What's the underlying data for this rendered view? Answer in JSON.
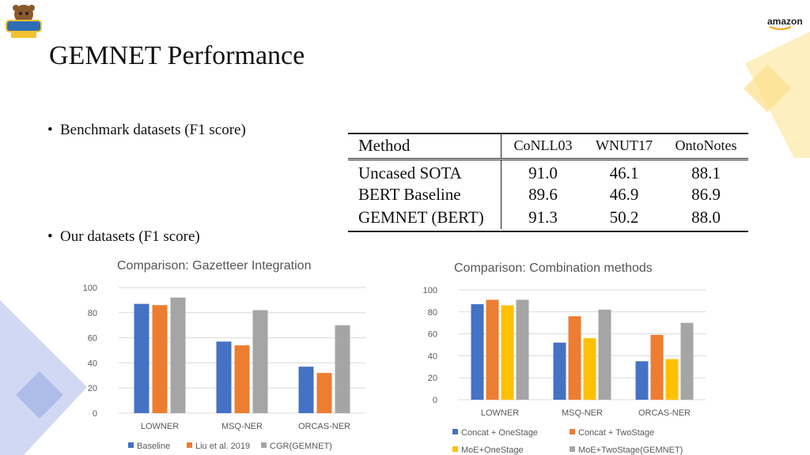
{
  "slide": {
    "title": "GEMNET Performance",
    "bullets": [
      "Benchmark datasets (F1 score)",
      "Our datasets (F1 score)"
    ]
  },
  "logos": {
    "left": "UCLA NLP logo",
    "right": "amazon"
  },
  "results_table": {
    "columns": [
      "Method",
      "CoNLL03",
      "WNUT17",
      "OntoNotes"
    ],
    "rows": [
      {
        "method": "Uncased SOTA",
        "conll03": "91.0",
        "wnut17": "46.1",
        "ontonotes": "88.1"
      },
      {
        "method": "BERT Baseline",
        "conll03": "89.6",
        "wnut17": "46.9",
        "ontonotes": "86.9"
      },
      {
        "method": "GEMNET (BERT)",
        "conll03": "91.3",
        "wnut17": "50.2",
        "ontonotes": "88.0"
      }
    ]
  },
  "colors": {
    "blue": "#4472C4",
    "orange": "#ED7D31",
    "gray": "#A5A5A5",
    "yellow": "#FFC000",
    "deco_blue": "#BCC8EE",
    "deco_yellow": "#FDEBB0"
  },
  "chart_data": [
    {
      "type": "bar",
      "title": "Comparison: Gazetteer Integration",
      "categories": [
        "LOWNER",
        "MSQ-NER",
        "ORCAS-NER"
      ],
      "yticks": [
        0,
        20,
        40,
        60,
        80,
        100
      ],
      "ylim": [
        0,
        100
      ],
      "grid": true,
      "legend_position": "bottom",
      "series": [
        {
          "name": "Baseline",
          "color": "#4472C4",
          "values": [
            87,
            57,
            37
          ]
        },
        {
          "name": "Liu et al. 2019",
          "color": "#ED7D31",
          "values": [
            86,
            54,
            32
          ]
        },
        {
          "name": "CGR(GEMNET)",
          "color": "#A5A5A5",
          "values": [
            92,
            82,
            70
          ]
        }
      ]
    },
    {
      "type": "bar",
      "title": "Comparison: Combination methods",
      "categories": [
        "LOWNER",
        "MSQ-NER",
        "ORCAS-NER"
      ],
      "yticks": [
        0,
        20,
        40,
        60,
        80,
        100
      ],
      "ylim": [
        0,
        100
      ],
      "grid": true,
      "legend_position": "bottom",
      "series": [
        {
          "name": "Concat + OneStage",
          "color": "#4472C4",
          "values": [
            87,
            52,
            35
          ]
        },
        {
          "name": "Concat + TwoStage",
          "color": "#ED7D31",
          "values": [
            91,
            76,
            59
          ]
        },
        {
          "name": "MoE+OneStage",
          "color": "#FFC000",
          "values": [
            86,
            56,
            37
          ]
        },
        {
          "name": "MoE+TwoStage(GEMNET)",
          "color": "#A5A5A5",
          "values": [
            91,
            82,
            70
          ]
        }
      ]
    }
  ]
}
